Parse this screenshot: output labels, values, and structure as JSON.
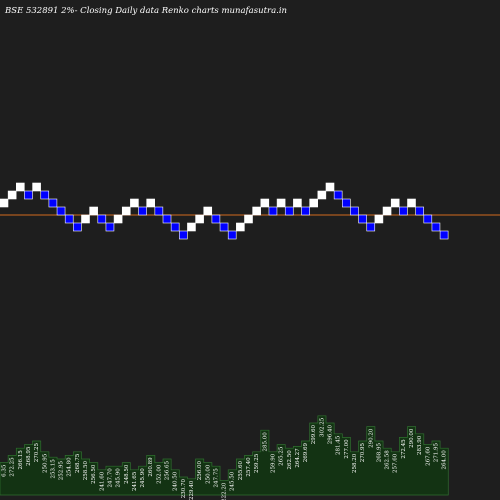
{
  "title": "BSE 532891 2%-  Closing Daily data  Renko  charts munafasutra.in",
  "colors": {
    "background": "#1e1e1e",
    "up_brick": "#ffffff",
    "down_brick": "#0000ff",
    "down_brick_border": "#ffffff",
    "reference_line": "#d2691e",
    "volume_fill": "#133313",
    "volume_edge": "#2f6f2f",
    "text": "#ffffff"
  },
  "chart_data": {
    "type": "renko",
    "title": "BSE 532891 2%-  Closing Daily data  Renko  charts munafasutra.in",
    "brick_levels": [
      1,
      2,
      3,
      2,
      3,
      2,
      1,
      0,
      -1,
      -2,
      -1,
      0,
      -1,
      -2,
      -1,
      0,
      1,
      0,
      1,
      0,
      -1,
      -2,
      -3,
      -2,
      -1,
      0,
      -1,
      -2,
      -3,
      -2,
      -1,
      0,
      1,
      0,
      1,
      0,
      1,
      0,
      1,
      2,
      3,
      2,
      1,
      0,
      -1,
      -2,
      -1,
      0,
      1,
      0,
      1,
      0,
      -1,
      -2,
      -3
    ],
    "brick_directions": [
      "up",
      "up",
      "up",
      "down",
      "up",
      "down",
      "down",
      "down",
      "down",
      "down",
      "up",
      "up",
      "down",
      "down",
      "up",
      "up",
      "up",
      "down",
      "up",
      "down",
      "down",
      "down",
      "down",
      "up",
      "up",
      "up",
      "down",
      "down",
      "down",
      "up",
      "up",
      "up",
      "up",
      "down",
      "up",
      "down",
      "up",
      "down",
      "up",
      "up",
      "up",
      "down",
      "down",
      "down",
      "down",
      "down",
      "up",
      "up",
      "up",
      "down",
      "up",
      "down",
      "down",
      "down",
      "down"
    ],
    "volume_labels": [
      "6.35",
      "272.25",
      "266.15",
      "268.95",
      "270.25",
      "250.95",
      "253.15",
      "252.95",
      "254.80",
      "268.75",
      "258.50",
      "256.50",
      "241.60",
      "247.70",
      "245.90",
      "248.50",
      "241.65",
      "245.90",
      "260.89",
      "252.00",
      "256.65",
      "240.50",
      "230.70",
      "229.40",
      "256.00",
      "250.00",
      "247.75",
      "222.20",
      "245.50",
      "255.60",
      "257.40",
      "259.25",
      "285.00",
      "259.90",
      "265.25",
      "262.50",
      "264.27",
      "269.69",
      "299.60",
      "302.25",
      "296.40",
      "281.45",
      "277.00",
      "258.20",
      "270.95",
      "290.20",
      "268.95",
      "262.58",
      "257.60",
      "272.45",
      "290.00",
      "283.90",
      "267.60",
      "271.95",
      "264.00"
    ],
    "volume_values": [
      18,
      22,
      26,
      28,
      30,
      24,
      21,
      20,
      22,
      24,
      20,
      18,
      14,
      16,
      16,
      18,
      14,
      16,
      22,
      18,
      20,
      14,
      10,
      9,
      20,
      18,
      16,
      8,
      14,
      20,
      22,
      24,
      36,
      24,
      28,
      26,
      27,
      30,
      40,
      44,
      40,
      34,
      32,
      24,
      30,
      38,
      30,
      26,
      24,
      32,
      38,
      34,
      28,
      30,
      26
    ],
    "reference_level": 0
  }
}
